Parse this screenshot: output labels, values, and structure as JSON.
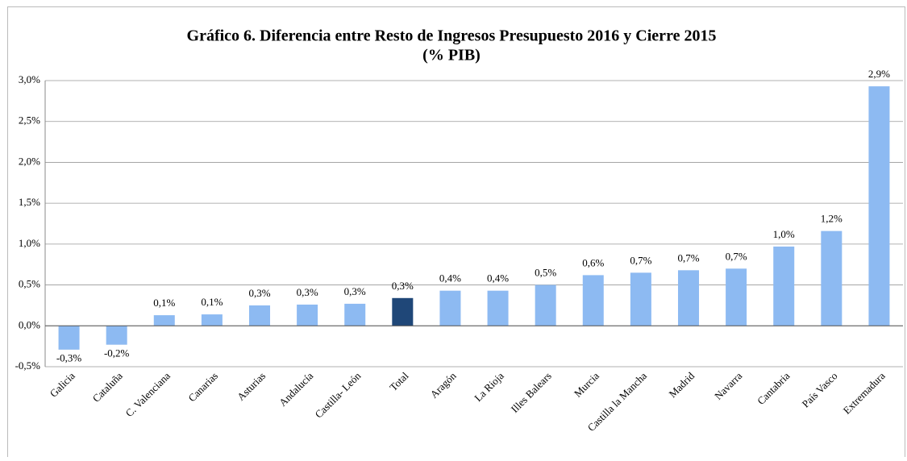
{
  "chart_data": {
    "type": "bar",
    "title": "Gráfico 6. Diferencia entre Resto de Ingresos Presupuesto 2016 y Cierre 2015",
    "subtitle": "(% PIB)",
    "categories": [
      "Galicia",
      "Cataluña",
      "C. Valenciana",
      "Canarias",
      "Asturias",
      "Andalucía",
      "Castilla- León",
      "Total",
      "Aragón",
      "La Rioja",
      "Illes Balears",
      "Murcia",
      "Castilla la Mancha",
      "Madrid",
      "Navarra",
      "Cantabria",
      "País Vasco",
      "Extremadura"
    ],
    "values": [
      -0.29,
      -0.23,
      0.13,
      0.14,
      0.25,
      0.26,
      0.27,
      0.34,
      0.43,
      0.43,
      0.5,
      0.62,
      0.65,
      0.68,
      0.7,
      0.97,
      1.16,
      2.93
    ],
    "value_labels": [
      "-0,3%",
      "-0,2%",
      "0,1%",
      "0,1%",
      "0,3%",
      "0,3%",
      "0,3%",
      "0,3%",
      "0,4%",
      "0,4%",
      "0,5%",
      "0,6%",
      "0,7%",
      "0,7%",
      "0,7%",
      "1,0%",
      "1,2%",
      "2,9%"
    ],
    "colors": [
      "#8dbaf2",
      "#8dbaf2",
      "#8dbaf2",
      "#8dbaf2",
      "#8dbaf2",
      "#8dbaf2",
      "#8dbaf2",
      "#1f4778",
      "#8dbaf2",
      "#8dbaf2",
      "#8dbaf2",
      "#8dbaf2",
      "#8dbaf2",
      "#8dbaf2",
      "#8dbaf2",
      "#8dbaf2",
      "#8dbaf2",
      "#8dbaf2"
    ],
    "ylim": [
      -0.5,
      3.0
    ],
    "yticks": [
      {
        "value": -0.5,
        "label": "-0,5%"
      },
      {
        "value": 0,
        "label": "0,0%"
      },
      {
        "value": 0.5,
        "label": "0,5%"
      },
      {
        "value": 1,
        "label": "1,0%"
      },
      {
        "value": 1.5,
        "label": "1,5%"
      },
      {
        "value": 2,
        "label": "2,0%"
      },
      {
        "value": 2.5,
        "label": "2,5%"
      },
      {
        "value": 3,
        "label": "3,0%"
      }
    ],
    "grid": true
  }
}
